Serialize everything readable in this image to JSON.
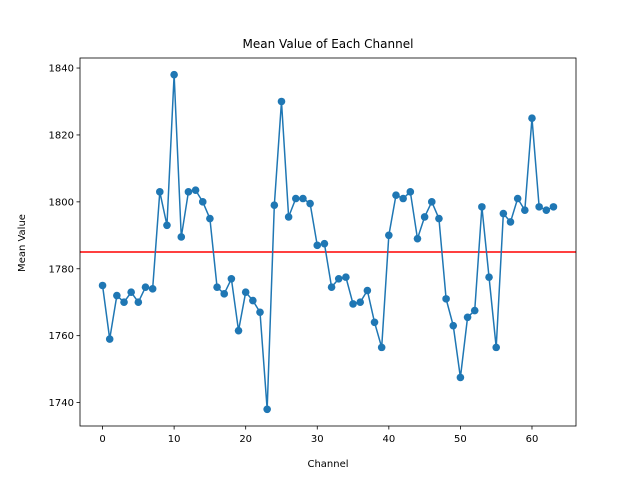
{
  "chart_data": {
    "type": "line",
    "title": "Mean Value of Each Channel",
    "xlabel": "Channel",
    "ylabel": "Mean Value",
    "xlim": [
      -3.15,
      66.15
    ],
    "ylim": [
      1733,
      1843
    ],
    "xticks": [
      0,
      10,
      20,
      30,
      40,
      50,
      60
    ],
    "yticks": [
      1740,
      1760,
      1780,
      1800,
      1820,
      1840
    ],
    "grid": false,
    "legend": "none",
    "series": [
      {
        "color": "#1f77b4",
        "marker": "circle",
        "x": [
          0,
          1,
          2,
          3,
          4,
          5,
          6,
          7,
          8,
          9,
          10,
          11,
          12,
          13,
          14,
          15,
          16,
          17,
          18,
          19,
          20,
          21,
          22,
          23,
          24,
          25,
          26,
          27,
          28,
          29,
          30,
          31,
          32,
          33,
          34,
          35,
          36,
          37,
          38,
          39,
          40,
          41,
          42,
          43,
          44,
          45,
          46,
          47,
          48,
          49,
          50,
          51,
          52,
          53,
          54,
          55,
          56,
          57,
          58,
          59,
          60,
          61,
          62,
          63
        ],
        "values": [
          1775,
          1759,
          1772,
          1770,
          1773,
          1770,
          1774.5,
          1774,
          1803,
          1793,
          1838,
          1789.5,
          1803,
          1803.5,
          1800,
          1795,
          1774.5,
          1772.5,
          1777,
          1761.5,
          1773,
          1770.5,
          1767,
          1738,
          1799,
          1830,
          1795.5,
          1801,
          1801,
          1799.5,
          1787,
          1787.5,
          1774.5,
          1777,
          1777.5,
          1769.5,
          1770,
          1773.5,
          1764,
          1756.5,
          1790,
          1802,
          1801,
          1803,
          1789,
          1795.5,
          1800,
          1795,
          1771,
          1763,
          1747.5,
          1765.5,
          1767.5,
          1798.5,
          1777.5,
          1756.5,
          1796.5,
          1794,
          1801,
          1797.5,
          1825,
          1798.5,
          1797.5,
          1798.5
        ]
      }
    ],
    "reference_line": {
      "orientation": "horizontal",
      "y": 1785,
      "color": "#ff0000"
    }
  }
}
